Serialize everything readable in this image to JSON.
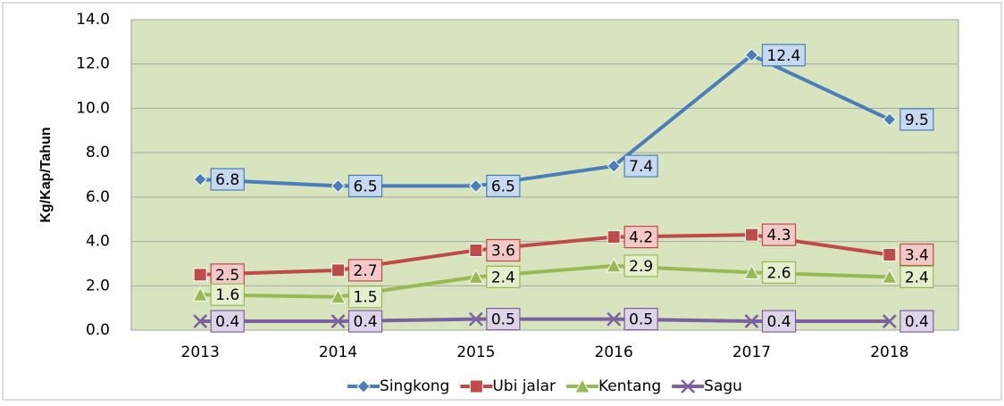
{
  "chart_data": {
    "type": "line",
    "y_label": "Kg/Kap/Tahun",
    "categories": [
      "2013",
      "2014",
      "2015",
      "2016",
      "2017",
      "2018"
    ],
    "series": [
      {
        "name": "Singkong",
        "color": "#4a7ebb",
        "label_fill": "#c6d9f1",
        "marker": "diamond",
        "values": [
          6.8,
          6.5,
          6.5,
          7.4,
          12.4,
          9.5
        ]
      },
      {
        "name": "Ubi jalar",
        "color": "#be4b48",
        "label_fill": "#f2c9c8",
        "marker": "square",
        "values": [
          2.5,
          2.7,
          3.6,
          4.2,
          4.3,
          3.4
        ]
      },
      {
        "name": "Kentang",
        "color": "#98b954",
        "label_fill": "#e4f0cd",
        "marker": "triangle",
        "values": [
          1.6,
          1.5,
          2.4,
          2.9,
          2.6,
          2.4
        ]
      },
      {
        "name": "Sagu",
        "color": "#7d60a0",
        "label_fill": "#ddd4ea",
        "marker": "x",
        "values": [
          0.4,
          0.4,
          0.5,
          0.5,
          0.4,
          0.4
        ]
      }
    ],
    "ylim": [
      0,
      14
    ],
    "yticks": [
      {
        "value": 0,
        "label": "0.0"
      },
      {
        "value": 2,
        "label": "2.0"
      },
      {
        "value": 4,
        "label": "4.0"
      },
      {
        "value": 6,
        "label": "6.0"
      },
      {
        "value": 8,
        "label": "8.0"
      },
      {
        "value": 10,
        "label": "10.0"
      },
      {
        "value": 12,
        "label": "12.0"
      },
      {
        "value": 14,
        "label": "14.0"
      }
    ],
    "grid": true,
    "plot_background": "#d7e4bd",
    "legend": "bottom"
  }
}
